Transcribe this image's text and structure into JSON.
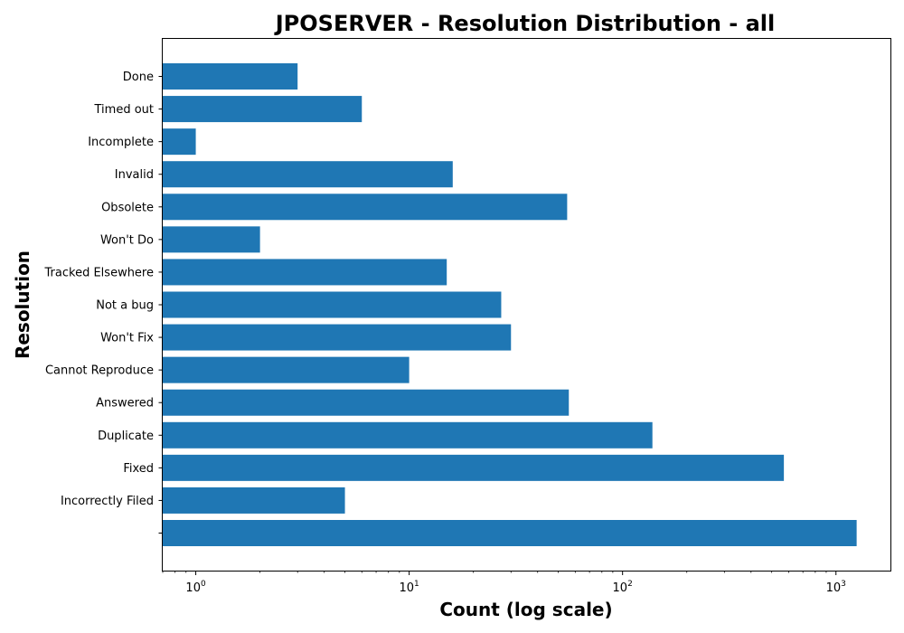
{
  "chart_data": {
    "type": "bar",
    "orientation": "horizontal",
    "title": "JPOSERVER - Resolution Distribution - all",
    "xlabel": "Count (log scale)",
    "ylabel": "Resolution",
    "xscale": "log",
    "xlim": [
      0.7,
      1800
    ],
    "grid": false,
    "bar_color": "#1f77b4",
    "categories": [
      "",
      "Incorrectly Filed",
      "Fixed",
      "Duplicate",
      "Answered",
      "Cannot Reproduce",
      "Won't Fix",
      "Not a bug",
      "Tracked Elsewhere",
      "Won't Do",
      "Obsolete",
      "Invalid",
      "Incomplete",
      "Timed out",
      "Done"
    ],
    "values": [
      1250,
      5,
      570,
      138,
      56,
      10,
      30,
      27,
      15,
      2,
      55,
      16,
      1,
      6,
      3
    ],
    "x_ticks": [
      {
        "base": "10",
        "exp": "0",
        "value": 1
      },
      {
        "base": "10",
        "exp": "1",
        "value": 10
      },
      {
        "base": "10",
        "exp": "2",
        "value": 100
      },
      {
        "base": "10",
        "exp": "3",
        "value": 1000
      }
    ]
  }
}
